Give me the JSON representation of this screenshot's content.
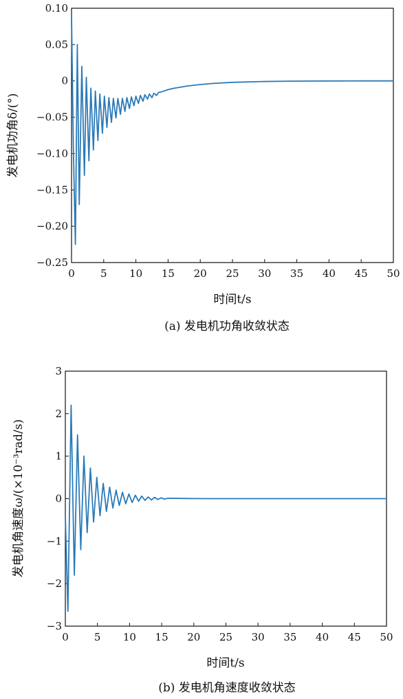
{
  "chart_data": [
    {
      "type": "line",
      "caption": "(a) 发电机功角收敛状态",
      "xlabel": "时间t/s",
      "ylabel": "发电机功角δ/(°)",
      "xlim": [
        0,
        50
      ],
      "ylim": [
        -0.25,
        0.1
      ],
      "xticks": [
        0,
        5,
        10,
        15,
        20,
        25,
        30,
        35,
        40,
        45,
        50
      ],
      "yticks": [
        0.1,
        0.05,
        0,
        -0.05,
        -0.1,
        -0.15,
        -0.2,
        -0.25
      ],
      "ytick_labels": [
        "0.10",
        "0.05",
        "0",
        "−0.05",
        "−0.10",
        "−0.15",
        "−0.20",
        "−0.25"
      ],
      "grid": false,
      "color": "#2a7ab8",
      "series": [
        {
          "x": [
            0,
            0.3,
            0.6,
            0.9,
            1.2,
            1.6,
            2.0,
            2.3,
            2.7,
            3.0,
            3.4,
            3.7,
            4.1,
            4.4,
            4.8,
            5.1,
            5.5,
            5.8,
            6.2,
            6.5,
            6.9,
            7.2,
            7.6,
            7.9,
            8.3,
            8.6,
            9.0,
            9.3,
            9.7,
            10.0,
            10.4,
            10.7,
            11.1,
            11.4,
            11.8,
            12.1,
            12.5,
            12.8,
            13.2,
            13.5,
            14,
            15,
            16,
            18,
            20,
            22,
            25,
            30,
            35,
            40,
            45,
            50
          ],
          "y": [
            0.09,
            -0.1,
            -0.225,
            0.05,
            -0.17,
            0.02,
            -0.13,
            0.005,
            -0.11,
            -0.01,
            -0.095,
            -0.014,
            -0.082,
            -0.018,
            -0.072,
            -0.021,
            -0.064,
            -0.023,
            -0.057,
            -0.024,
            -0.051,
            -0.024,
            -0.046,
            -0.024,
            -0.042,
            -0.023,
            -0.038,
            -0.022,
            -0.034,
            -0.021,
            -0.031,
            -0.02,
            -0.028,
            -0.019,
            -0.025,
            -0.018,
            -0.023,
            -0.017,
            -0.02,
            -0.016,
            -0.015,
            -0.012,
            -0.01,
            -0.007,
            -0.005,
            -0.0035,
            -0.002,
            -0.0008,
            -0.0003,
            -0.0001,
            0,
            0
          ]
        }
      ]
    },
    {
      "type": "line",
      "caption": "(b) 发电机角速度收敛状态",
      "xlabel": "时间t/s",
      "ylabel": "发电机角速度ω/(×10⁻³rad/s)",
      "xlim": [
        0,
        50
      ],
      "ylim": [
        -3,
        3
      ],
      "xticks": [
        0,
        5,
        10,
        15,
        20,
        25,
        30,
        35,
        40,
        45,
        50
      ],
      "yticks": [
        3,
        2,
        1,
        0,
        -1,
        -2,
        -3
      ],
      "ytick_labels": [
        "3",
        "2",
        "1",
        "0",
        "−1",
        "−2",
        "−3"
      ],
      "grid": false,
      "color": "#2a7ab8",
      "series": [
        {
          "x": [
            0,
            0.4,
            0.9,
            1.4,
            1.9,
            2.4,
            2.9,
            3.4,
            3.9,
            4.4,
            4.9,
            5.4,
            5.9,
            6.4,
            6.9,
            7.4,
            7.9,
            8.4,
            8.9,
            9.4,
            9.9,
            10.4,
            10.9,
            11.4,
            11.9,
            12.4,
            12.9,
            13.4,
            13.9,
            14.4,
            14.9,
            15.4,
            16,
            18,
            20,
            22,
            25,
            30,
            40,
            50
          ],
          "y": [
            -0.4,
            -2.65,
            2.2,
            -1.8,
            1.5,
            -1.2,
            1.0,
            -0.8,
            0.72,
            -0.55,
            0.5,
            -0.4,
            0.36,
            -0.3,
            0.27,
            -0.22,
            0.2,
            -0.16,
            0.15,
            -0.12,
            0.11,
            -0.09,
            0.08,
            -0.06,
            0.06,
            -0.04,
            0.04,
            -0.03,
            0.03,
            -0.02,
            0.02,
            -0.01,
            0.01,
            0.005,
            0.002,
            0,
            0,
            0,
            0,
            0
          ]
        }
      ]
    }
  ]
}
